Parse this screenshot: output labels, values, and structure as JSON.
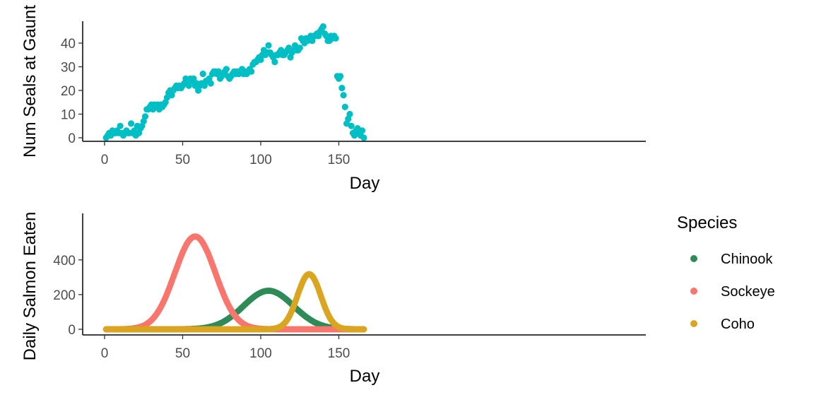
{
  "chart_data": [
    {
      "type": "scatter",
      "title": "",
      "xlabel": "Day",
      "ylabel": "Num Seals at Gaunt",
      "xlim": [
        0,
        166
      ],
      "ylim": [
        0,
        48
      ],
      "xticks": [
        0,
        50,
        100,
        150
      ],
      "yticks": [
        0,
        10,
        20,
        30,
        40
      ],
      "grid": false,
      "color": "#00BFC4",
      "series": [
        {
          "values": [
            [
              1,
              0
            ],
            [
              2,
              1
            ],
            [
              3,
              2
            ],
            [
              4,
              1
            ],
            [
              5,
              3
            ],
            [
              6,
              2
            ],
            [
              7,
              2
            ],
            [
              8,
              3
            ],
            [
              9,
              2
            ],
            [
              10,
              5
            ],
            [
              11,
              2
            ],
            [
              12,
              1
            ],
            [
              13,
              2
            ],
            [
              14,
              3
            ],
            [
              15,
              2
            ],
            [
              16,
              2
            ],
            [
              17,
              6
            ],
            [
              18,
              2
            ],
            [
              19,
              3
            ],
            [
              20,
              1
            ],
            [
              21,
              5
            ],
            [
              22,
              2
            ],
            [
              23,
              4
            ],
            [
              24,
              5
            ],
            [
              25,
              7
            ],
            [
              26,
              9
            ],
            [
              27,
              12
            ],
            [
              28,
              12
            ],
            [
              29,
              13
            ],
            [
              30,
              14
            ],
            [
              31,
              12
            ],
            [
              32,
              14
            ],
            [
              33,
              13
            ],
            [
              34,
              14
            ],
            [
              35,
              12
            ],
            [
              36,
              14
            ],
            [
              37,
              13
            ],
            [
              38,
              14
            ],
            [
              39,
              15
            ],
            [
              40,
              17
            ],
            [
              41,
              19
            ],
            [
              42,
              20
            ],
            [
              43,
              18
            ],
            [
              44,
              20
            ],
            [
              45,
              21
            ],
            [
              46,
              22
            ],
            [
              47,
              21
            ],
            [
              48,
              22
            ],
            [
              49,
              21
            ],
            [
              50,
              22
            ],
            [
              51,
              23
            ],
            [
              52,
              25
            ],
            [
              53,
              24
            ],
            [
              54,
              22
            ],
            [
              55,
              25
            ],
            [
              56,
              24
            ],
            [
              57,
              25
            ],
            [
              58,
              22
            ],
            [
              59,
              23
            ],
            [
              60,
              20
            ],
            [
              61,
              22
            ],
            [
              62,
              23
            ],
            [
              63,
              27
            ],
            [
              64,
              22
            ],
            [
              65,
              24
            ],
            [
              66,
              24
            ],
            [
              67,
              25
            ],
            [
              68,
              23
            ],
            [
              69,
              27
            ],
            [
              70,
              28
            ],
            [
              71,
              28
            ],
            [
              72,
              27
            ],
            [
              73,
              28
            ],
            [
              74,
              25
            ],
            [
              75,
              26
            ],
            [
              76,
              27
            ],
            [
              77,
              28
            ],
            [
              78,
              29
            ],
            [
              79,
              26
            ],
            [
              80,
              25
            ],
            [
              81,
              26
            ],
            [
              82,
              27
            ],
            [
              83,
              28
            ],
            [
              84,
              27
            ],
            [
              85,
              28
            ],
            [
              86,
              27
            ],
            [
              87,
              28
            ],
            [
              88,
              29
            ],
            [
              89,
              27
            ],
            [
              90,
              28
            ],
            [
              91,
              27
            ],
            [
              92,
              28
            ],
            [
              93,
              29
            ],
            [
              94,
              28
            ],
            [
              95,
              31
            ],
            [
              96,
              32
            ],
            [
              97,
              32
            ],
            [
              98,
              33
            ],
            [
              99,
              34
            ],
            [
              100,
              33
            ],
            [
              101,
              35
            ],
            [
              102,
              37
            ],
            [
              103,
              35
            ],
            [
              104,
              36
            ],
            [
              105,
              39
            ],
            [
              106,
              36
            ],
            [
              107,
              35
            ],
            [
              108,
              34
            ],
            [
              109,
              32
            ],
            [
              110,
              35
            ],
            [
              111,
              35
            ],
            [
              112,
              36
            ],
            [
              113,
              37
            ],
            [
              114,
              35
            ],
            [
              115,
              35
            ],
            [
              116,
              36
            ],
            [
              117,
              37
            ],
            [
              118,
              38
            ],
            [
              119,
              34
            ],
            [
              120,
              36
            ],
            [
              121,
              37
            ],
            [
              122,
              39
            ],
            [
              123,
              37
            ],
            [
              124,
              37
            ],
            [
              125,
              38
            ],
            [
              126,
              42
            ],
            [
              127,
              41
            ],
            [
              128,
              40
            ],
            [
              129,
              42
            ],
            [
              130,
              41
            ],
            [
              131,
              42
            ],
            [
              132,
              43
            ],
            [
              133,
              41
            ],
            [
              134,
              43
            ],
            [
              135,
              43
            ],
            [
              136,
              44
            ],
            [
              137,
              43
            ],
            [
              138,
              45
            ],
            [
              139,
              46
            ],
            [
              140,
              47
            ],
            [
              141,
              44
            ],
            [
              142,
              43
            ],
            [
              143,
              41
            ],
            [
              144,
              41
            ],
            [
              145,
              43
            ],
            [
              146,
              42
            ],
            [
              147,
              43
            ],
            [
              148,
              42
            ],
            [
              149,
              26
            ],
            [
              150,
              25
            ],
            [
              151,
              26
            ],
            [
              152,
              21
            ],
            [
              153,
              18
            ],
            [
              154,
              13
            ],
            [
              155,
              6
            ],
            [
              156,
              8
            ],
            [
              157,
              10
            ],
            [
              158,
              5
            ],
            [
              159,
              2
            ],
            [
              160,
              1
            ],
            [
              161,
              3
            ],
            [
              162,
              4
            ],
            [
              163,
              2
            ],
            [
              164,
              1
            ],
            [
              165,
              3
            ],
            [
              166,
              0
            ]
          ]
        }
      ]
    },
    {
      "type": "scatter",
      "title": "",
      "xlabel": "Day",
      "ylabel": "Daily Salmon Eaten",
      "xlim": [
        0,
        166
      ],
      "ylim": [
        0,
        560
      ],
      "xticks": [
        0,
        50,
        100,
        150
      ],
      "yticks": [
        0,
        200,
        400
      ],
      "grid": false,
      "legend_title": "Species",
      "legend_position": "right",
      "series": [
        {
          "name": "Chinook",
          "color": "#2E8B57",
          "shape": "gaussian",
          "peak_day": 105,
          "peak_value": 222,
          "sd_days": 16,
          "days": [
            1,
            166
          ]
        },
        {
          "name": "Sockeye",
          "color": "#F8766D",
          "shape": "gaussian",
          "peak_day": 58,
          "peak_value": 535,
          "sd_days": 13,
          "days": [
            1,
            166
          ]
        },
        {
          "name": "Coho",
          "color": "#DAA520",
          "shape": "gaussian",
          "peak_day": 131,
          "peak_value": 318,
          "sd_days": 7.5,
          "days": [
            1,
            166
          ]
        }
      ]
    }
  ]
}
